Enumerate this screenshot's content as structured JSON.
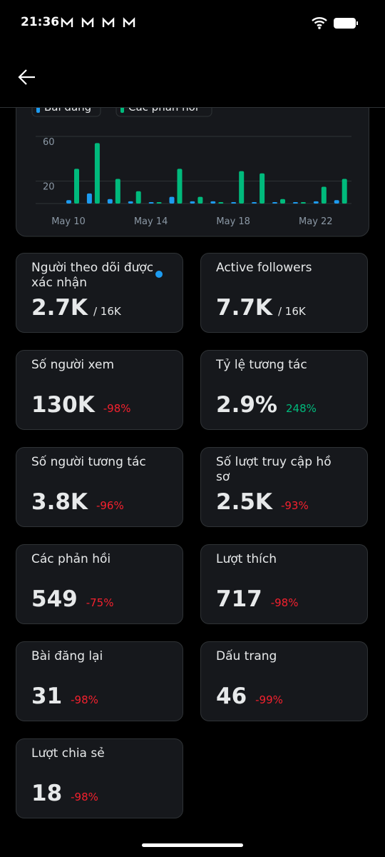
{
  "status_bar": {
    "time": "21:36"
  },
  "chart_data": {
    "type": "bar",
    "categories": [
      "May 10",
      null,
      null,
      null,
      "May 14",
      null,
      null,
      null,
      "May 18",
      null,
      null,
      null,
      "May 22",
      null
    ],
    "series": [
      {
        "name": "Bài đăng",
        "color": "#1d9bf0",
        "values": [
          3,
          9,
          4,
          2,
          0,
          6,
          2,
          2,
          1,
          0,
          1,
          0,
          2,
          3
        ]
      },
      {
        "name": "Các phản hồi",
        "color": "#00ba7c",
        "values": [
          31,
          54,
          22,
          11,
          0,
          31,
          6,
          0,
          29,
          27,
          4,
          0,
          15,
          22
        ]
      }
    ],
    "ylim": [
      0,
      60
    ],
    "yticks": [
      20,
      60
    ],
    "grid": true
  },
  "cards": [
    {
      "title": "Người theo dõi được xác nhận",
      "value": "2.7K",
      "total": "/ 16K",
      "verified": true
    },
    {
      "title": "Active followers",
      "value": "7.7K",
      "total": "/ 16K"
    },
    {
      "title": "Số người xem",
      "value": "130K",
      "change": "-98%",
      "trend": "down"
    },
    {
      "title": "Tỷ lệ tương tác",
      "value": "2.9%",
      "change": "248%",
      "trend": "up"
    },
    {
      "title": "Số người tương tác",
      "value": "3.8K",
      "change": "-96%",
      "trend": "down"
    },
    {
      "title": "Số lượt truy cập hồ sơ",
      "value": "2.5K",
      "change": "-93%",
      "trend": "down"
    },
    {
      "title": "Các phản hồi",
      "value": "549",
      "change": "-75%",
      "trend": "down"
    },
    {
      "title": "Lượt thích",
      "value": "717",
      "change": "-98%",
      "trend": "down"
    },
    {
      "title": "Bài đăng lại",
      "value": "31",
      "change": "-98%",
      "trend": "down"
    },
    {
      "title": "Dấu trang",
      "value": "46",
      "change": "-99%",
      "trend": "down"
    },
    {
      "title": "Lượt chia sẻ",
      "value": "18",
      "change": "-98%",
      "trend": "down"
    }
  ]
}
